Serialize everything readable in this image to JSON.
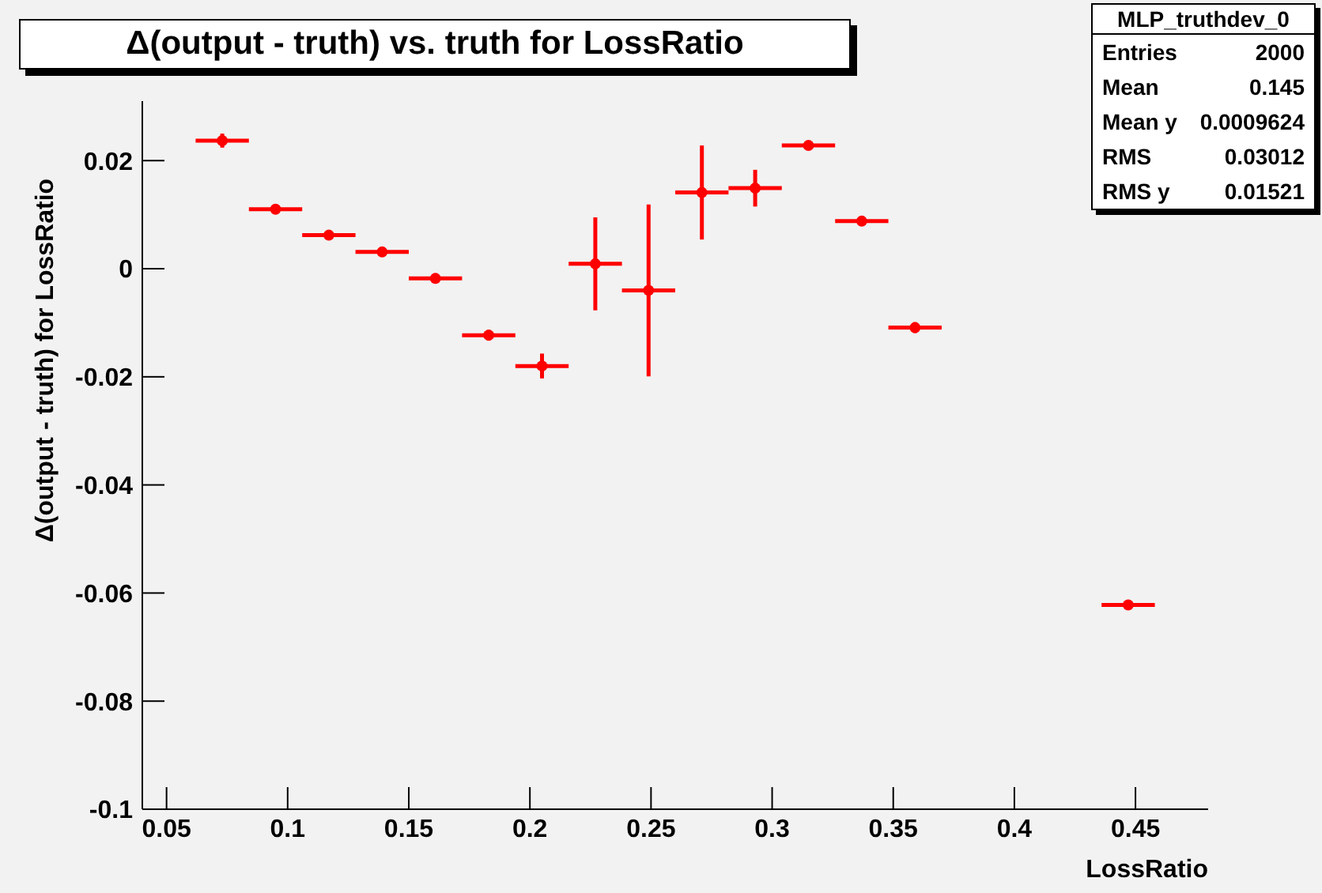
{
  "chart_data": {
    "type": "scatter",
    "title": "Δ(output - truth) vs. truth for LossRatio",
    "xlabel": "LossRatio",
    "ylabel": "Δ(output - truth) for LossRatio",
    "annotations": [
      "MLP_truthdev_0",
      "Entries",
      "2000",
      "Mean",
      "0.145",
      "Mean y",
      "0.0009624",
      "RMS",
      "0.03012",
      "RMS y",
      "0.01521"
    ],
    "x": [
      0.073,
      0.095,
      0.117,
      0.139,
      0.161,
      0.183,
      0.205,
      0.227,
      0.249,
      0.271,
      0.293,
      0.315,
      0.337,
      0.359,
      0.447
    ],
    "series": [
      {
        "color": "#ff0000",
        "values": [
          0.0237,
          0.011,
          0.0062,
          0.0031,
          -0.0018,
          -0.0123,
          -0.018,
          0.0009,
          -0.004,
          0.0141,
          0.0149,
          0.0228,
          0.0088,
          -0.0109,
          -0.0622
        ],
        "errors": [
          0.0013,
          0.0008,
          0.0004,
          0.0003,
          null,
          0.001,
          0.0023,
          0.0086,
          0.0159,
          0.0087,
          0.0034,
          null,
          null,
          0.001,
          null
        ],
        "xerrors": [
          0.011,
          0.011,
          0.011,
          0.011,
          0.011,
          0.011,
          0.011,
          0.011,
          0.011,
          0.011,
          0.011,
          0.011,
          0.011,
          0.011,
          0.011
        ]
      }
    ],
    "xlim": [
      0.04,
      0.48
    ],
    "xticks": [
      0.05,
      0.1,
      0.15,
      0.2,
      0.25,
      0.3,
      0.35,
      0.4,
      0.45
    ],
    "ylim": [
      -0.1,
      0.031
    ],
    "yticks": [
      -0.1,
      -0.08,
      -0.06,
      -0.04,
      -0.02,
      0,
      0.02
    ],
    "grid": false,
    "legend": false
  }
}
